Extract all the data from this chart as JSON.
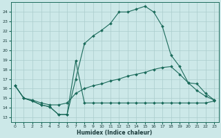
{
  "xlabel": "Humidex (Indice chaleur)",
  "background_color": "#cce8e8",
  "grid_color": "#aacccc",
  "line_color": "#1a6a5a",
  "xlim": [
    -0.5,
    23.5
  ],
  "ylim": [
    12.5,
    25.0
  ],
  "yticks": [
    13,
    14,
    15,
    16,
    17,
    18,
    19,
    20,
    21,
    22,
    23,
    24
  ],
  "xticks": [
    0,
    1,
    2,
    3,
    4,
    5,
    6,
    7,
    8,
    9,
    10,
    11,
    12,
    13,
    14,
    15,
    16,
    17,
    18,
    19,
    20,
    21,
    22,
    23
  ],
  "line1_x": [
    0,
    1,
    2,
    3,
    4,
    5,
    6,
    7,
    8,
    9,
    10,
    11,
    12,
    13,
    14,
    15,
    16,
    17,
    18,
    19,
    20,
    21,
    22,
    23
  ],
  "line1_y": [
    16.3,
    15.0,
    14.7,
    14.3,
    14.1,
    13.3,
    13.3,
    17.0,
    20.7,
    21.5,
    22.1,
    22.8,
    24.0,
    24.0,
    24.3,
    24.6,
    24.0,
    22.5,
    19.5,
    18.3,
    16.6,
    15.8,
    15.2,
    14.8
  ],
  "line2_x": [
    0,
    1,
    2,
    3,
    4,
    5,
    6,
    7,
    8,
    9,
    10,
    11,
    12,
    13,
    14,
    15,
    16,
    17,
    18,
    19,
    20,
    21,
    22,
    23
  ],
  "line2_y": [
    16.3,
    15.0,
    14.8,
    14.5,
    14.3,
    14.3,
    14.5,
    15.5,
    16.0,
    16.3,
    16.5,
    16.8,
    17.0,
    17.3,
    17.5,
    17.7,
    18.0,
    18.2,
    18.3,
    17.5,
    16.6,
    16.5,
    15.5,
    14.8
  ],
  "line3_x": [
    0,
    1,
    2,
    3,
    4,
    5,
    6,
    7,
    8,
    9,
    10,
    11,
    12,
    13,
    14,
    15,
    16,
    17,
    18,
    19,
    20,
    21,
    22,
    23
  ],
  "line3_y": [
    16.3,
    15.0,
    14.7,
    14.3,
    14.1,
    13.3,
    13.3,
    18.9,
    14.5,
    14.5,
    14.5,
    14.5,
    14.5,
    14.5,
    14.5,
    14.5,
    14.5,
    14.5,
    14.5,
    14.5,
    14.5,
    14.5,
    14.5,
    14.7
  ]
}
